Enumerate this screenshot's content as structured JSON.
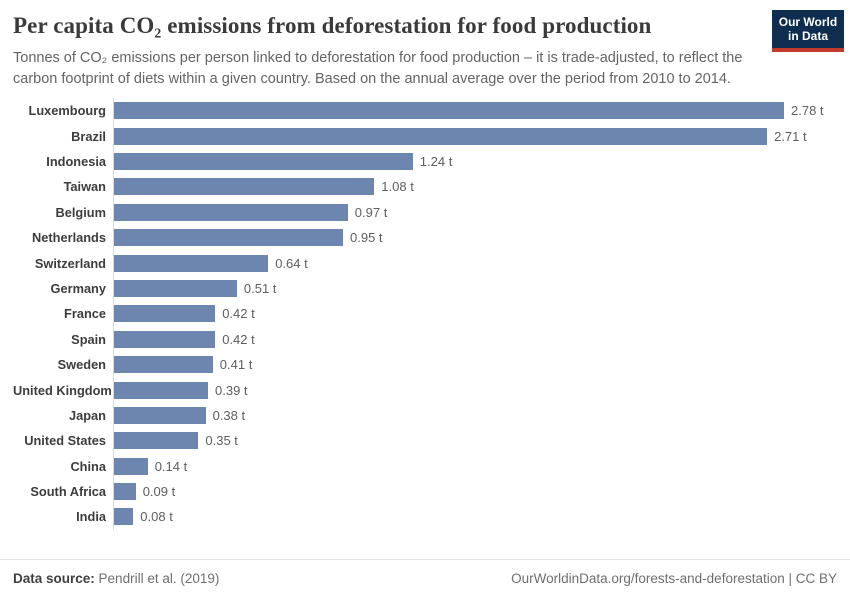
{
  "header": {
    "title": "Per capita CO₂ emissions from deforestation for food production",
    "subtitle": "Tonnes of CO₂ emissions per person linked to deforestation for food production – it is trade-adjusted, to reflect the carbon footprint of diets within a given country. Based on the annual average over the period from 2010 to 2014.",
    "logo": {
      "line1": "Our World",
      "line2": "in Data"
    }
  },
  "chart_data": {
    "type": "bar",
    "orientation": "horizontal",
    "title": "Per capita CO₂ emissions from deforestation for food production",
    "unit": "t",
    "xlim": [
      0,
      2.78
    ],
    "grid": false,
    "legend": false,
    "categories": [
      "Luxembourg",
      "Brazil",
      "Indonesia",
      "Taiwan",
      "Belgium",
      "Netherlands",
      "Switzerland",
      "Germany",
      "France",
      "Spain",
      "Sweden",
      "United Kingdom",
      "Japan",
      "United States",
      "China",
      "South Africa",
      "India"
    ],
    "values": [
      2.78,
      2.71,
      1.24,
      1.08,
      0.97,
      0.95,
      0.64,
      0.51,
      0.42,
      0.42,
      0.41,
      0.39,
      0.38,
      0.35,
      0.14,
      0.09,
      0.08
    ],
    "value_labels": [
      "2.78 t",
      "2.71 t",
      "1.24 t",
      "1.08 t",
      "0.97 t",
      "0.95 t",
      "0.64 t",
      "0.51 t",
      "0.42 t",
      "0.42 t",
      "0.41 t",
      "0.39 t",
      "0.38 t",
      "0.35 t",
      "0.14 t",
      "0.09 t",
      "0.08 t"
    ]
  },
  "footer": {
    "datasource_label": "Data source:",
    "datasource_value": "Pendrill et al. (2019)",
    "link": "OurWorldinData.org/forests-and-deforestation | CC BY"
  },
  "colors": {
    "bar": "#6d86af",
    "logo_bg": "#0f2d4e",
    "logo_underline": "#c0392b",
    "title_text": "#3a3a3a",
    "subtitle_text": "#646464",
    "axis_line": "#d9d9d9"
  }
}
